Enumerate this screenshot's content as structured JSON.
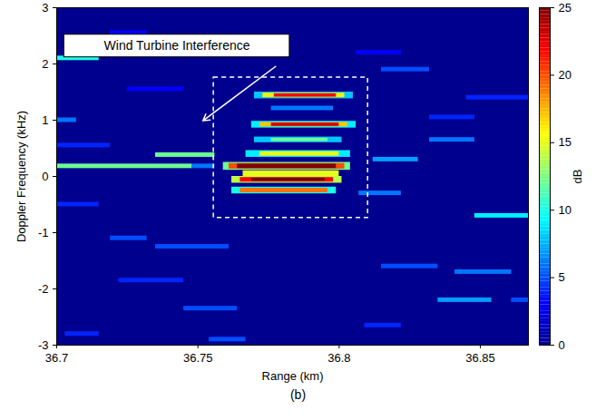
{
  "chart_data": {
    "type": "heatmap",
    "caption": "(b)",
    "xlabel": "Range (km)",
    "ylabel": "Doppler Frequency (kHz)",
    "xlim": [
      36.7,
      36.867
    ],
    "xticks": [
      36.7,
      36.75,
      36.8,
      36.85
    ],
    "ylim": [
      -3,
      3
    ],
    "yticks": [
      -3,
      -2,
      -1,
      0,
      1,
      2,
      3
    ],
    "annotation": {
      "text": "Wind Turbine Interference"
    },
    "colorbar": {
      "label": "dB",
      "lim": [
        0,
        25
      ],
      "ticks": [
        0,
        5,
        10,
        15,
        20,
        25
      ]
    },
    "cells": [
      {
        "x": [
          36.7,
          36.748
        ],
        "y": [
          0.14,
          0.22
        ],
        "value": 12
      },
      {
        "x": [
          36.748,
          36.756
        ],
        "y": [
          0.14,
          0.22
        ],
        "value": 6
      },
      {
        "x": [
          36.735,
          36.756
        ],
        "y": [
          0.34,
          0.42
        ],
        "value": 12
      },
      {
        "x": [
          36.7,
          36.707
        ],
        "y": [
          0.96,
          1.04
        ],
        "value": 6
      },
      {
        "x": [
          36.7,
          36.715
        ],
        "y": [
          2.06,
          2.14
        ],
        "value": 10
      },
      {
        "x": [
          36.815,
          36.832
        ],
        "y": [
          1.86,
          1.94
        ],
        "value": 5
      },
      {
        "x": [
          36.845,
          36.867
        ],
        "y": [
          1.36,
          1.44
        ],
        "value": 4
      },
      {
        "x": [
          36.832,
          36.848
        ],
        "y": [
          0.61,
          0.69
        ],
        "value": 6
      },
      {
        "x": [
          36.812,
          36.828
        ],
        "y": [
          0.26,
          0.34
        ],
        "value": 7
      },
      {
        "x": [
          36.807,
          36.822
        ],
        "y": [
          -0.34,
          -0.26
        ],
        "value": 6
      },
      {
        "x": [
          36.848,
          36.867
        ],
        "y": [
          -0.74,
          -0.66
        ],
        "value": 9
      },
      {
        "x": [
          36.719,
          36.732
        ],
        "y": [
          -1.14,
          -1.06
        ],
        "value": 5
      },
      {
        "x": [
          36.735,
          36.761
        ],
        "y": [
          -1.29,
          -1.21
        ],
        "value": 5
      },
      {
        "x": [
          36.815,
          36.835
        ],
        "y": [
          -1.64,
          -1.56
        ],
        "value": 5
      },
      {
        "x": [
          36.722,
          36.745
        ],
        "y": [
          -1.89,
          -1.81
        ],
        "value": 4
      },
      {
        "x": [
          36.835,
          36.854
        ],
        "y": [
          -2.24,
          -2.16
        ],
        "value": 7
      },
      {
        "x": [
          36.745,
          36.764
        ],
        "y": [
          -2.39,
          -2.31
        ],
        "value": 5
      },
      {
        "x": [
          36.861,
          36.867
        ],
        "y": [
          -2.24,
          -2.16
        ],
        "value": 5
      },
      {
        "x": [
          36.703,
          36.715
        ],
        "y": [
          -2.84,
          -2.76
        ],
        "value": 4
      },
      {
        "x": [
          36.754,
          36.767
        ],
        "y": [
          -2.94,
          -2.86
        ],
        "value": 5
      },
      {
        "x": [
          36.809,
          36.822
        ],
        "y": [
          -2.69,
          -2.61
        ],
        "value": 4
      },
      {
        "x": [
          36.725,
          36.745
        ],
        "y": [
          1.51,
          1.59
        ],
        "value": 3
      },
      {
        "x": [
          36.719,
          36.732
        ],
        "y": [
          2.51,
          2.59
        ],
        "value": 3
      },
      {
        "x": [
          36.7,
          36.719
        ],
        "y": [
          0.51,
          0.59
        ],
        "value": 4
      },
      {
        "x": [
          36.7,
          36.715
        ],
        "y": [
          -0.54,
          -0.46
        ],
        "value": 4
      },
      {
        "x": [
          36.841,
          36.861
        ],
        "y": [
          -1.74,
          -1.66
        ],
        "value": 6
      },
      {
        "x": [
          36.832,
          36.848
        ],
        "y": [
          1.01,
          1.09
        ],
        "value": 4
      },
      {
        "x": [
          36.806,
          36.822
        ],
        "y": [
          2.16,
          2.24
        ],
        "value": 3
      },
      {
        "x": [
          36.77,
          36.805
        ],
        "y": [
          1.38,
          1.5
        ],
        "value": 8
      },
      {
        "x": [
          36.773,
          36.802
        ],
        "y": [
          1.4,
          1.48
        ],
        "value": 16
      },
      {
        "x": [
          36.777,
          36.799
        ],
        "y": [
          1.41,
          1.47
        ],
        "value": 22
      },
      {
        "x": [
          36.776,
          36.798
        ],
        "y": [
          1.17,
          1.25
        ],
        "value": 6
      },
      {
        "x": [
          36.769,
          36.806
        ],
        "y": [
          0.86,
          0.98
        ],
        "value": 9
      },
      {
        "x": [
          36.772,
          36.803
        ],
        "y": [
          0.88,
          0.96
        ],
        "value": 17
      },
      {
        "x": [
          36.776,
          36.8
        ],
        "y": [
          0.89,
          0.95
        ],
        "value": 23
      },
      {
        "x": [
          36.77,
          36.801
        ],
        "y": [
          0.6,
          0.7
        ],
        "value": 8
      },
      {
        "x": [
          36.776,
          36.796
        ],
        "y": [
          0.62,
          0.68
        ],
        "value": 12
      },
      {
        "x": [
          36.767,
          36.804
        ],
        "y": [
          0.34,
          0.46
        ],
        "value": 9
      },
      {
        "x": [
          36.772,
          36.8
        ],
        "y": [
          0.36,
          0.44
        ],
        "value": 15
      },
      {
        "x": [
          36.766,
          36.8
        ],
        "y": [
          0.0,
          0.1
        ],
        "value": 15
      },
      {
        "x": [
          36.759,
          36.804
        ],
        "y": [
          0.11,
          0.25
        ],
        "value": 12
      },
      {
        "x": [
          36.761,
          36.802
        ],
        "y": [
          0.13,
          0.23
        ],
        "value": 20
      },
      {
        "x": [
          36.764,
          36.799
        ],
        "y": [
          0.14,
          0.22
        ],
        "value": 25
      },
      {
        "x": [
          36.762,
          36.801
        ],
        "y": [
          -0.12,
          0.0
        ],
        "value": 14
      },
      {
        "x": [
          36.765,
          36.798
        ],
        "y": [
          -0.1,
          -0.02
        ],
        "value": 22
      },
      {
        "x": [
          36.769,
          36.795
        ],
        "y": [
          -0.09,
          -0.03
        ],
        "value": 25
      },
      {
        "x": [
          36.762,
          36.799
        ],
        "y": [
          -0.31,
          -0.19
        ],
        "value": 10
      },
      {
        "x": [
          36.765,
          36.796
        ],
        "y": [
          -0.29,
          -0.21
        ],
        "value": 19
      }
    ]
  }
}
